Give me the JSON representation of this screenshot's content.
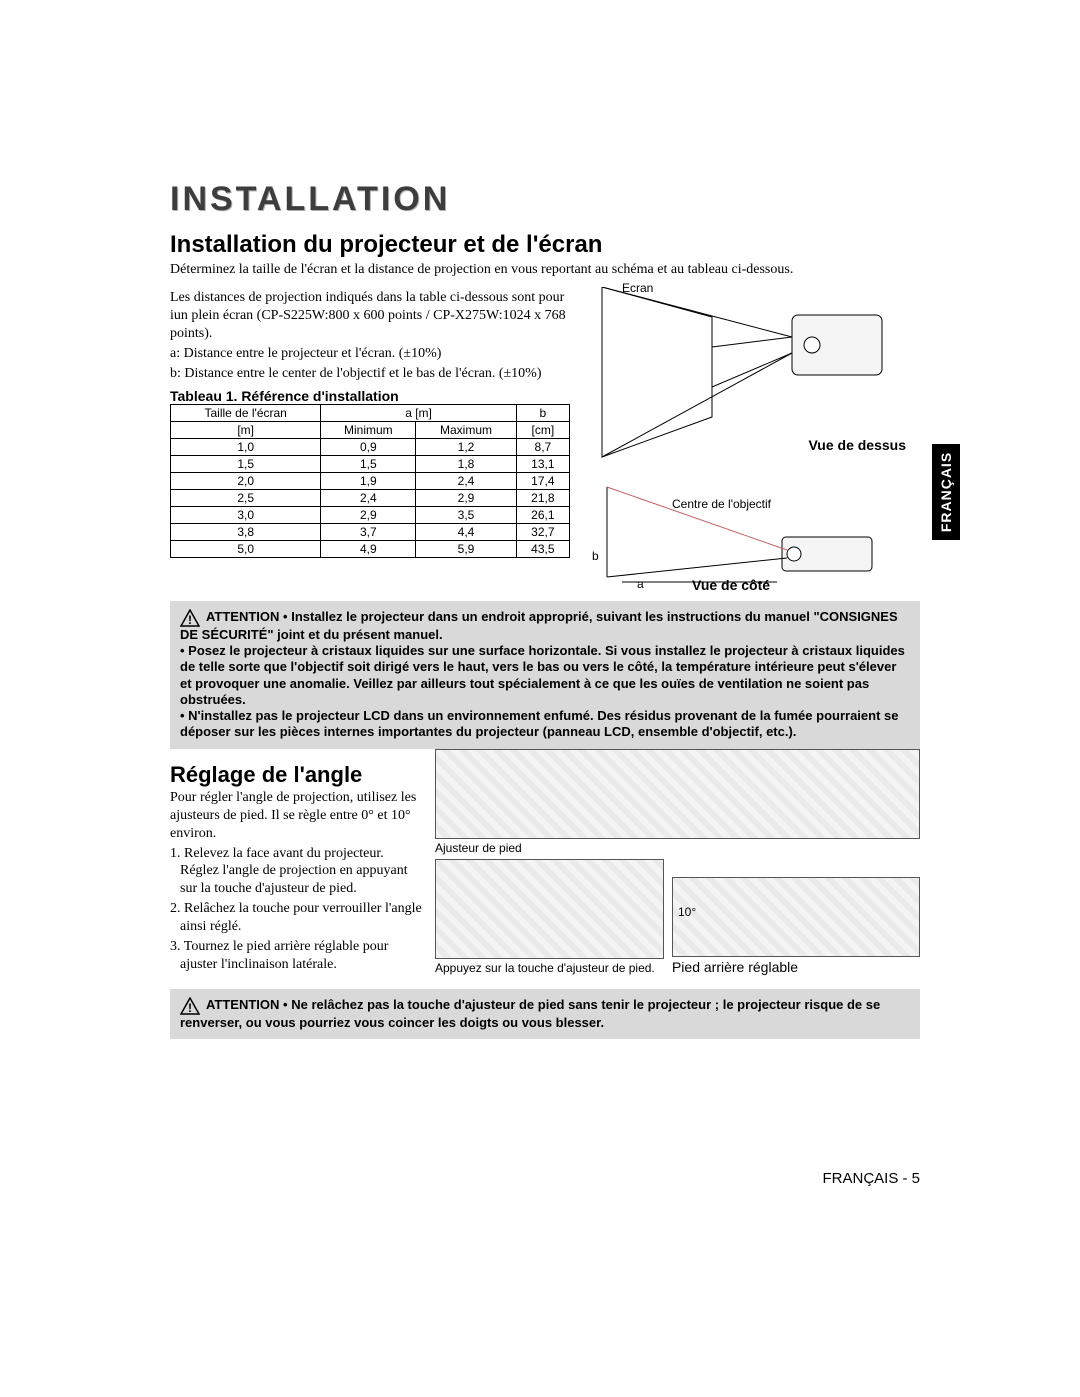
{
  "page": {
    "title": "INSTALLATION",
    "footer": "FRANÇAIS - 5",
    "lang_tab": "FRANÇAIS"
  },
  "section1": {
    "heading": "Installation du projecteur et de l'écran",
    "intro": "Déterminez la taille de l'écran et la distance de projection en vous reportant au schéma et au tableau ci-dessous.",
    "para_distances": "Les distances de projection indiqués dans la table ci-dessous sont pour iun plein écran (CP-S225W:800 x 600 points / CP-X275W:1024 x 768 points).",
    "line_a": "a: Distance entre le projecteur et l'écran. (±10%)",
    "line_b": "b: Distance entre le center de l'objectif et le bas de l'écran. (±10%)",
    "table_title": "Tableau 1. Référence d'installation",
    "table": {
      "header_col1": "Taille de l'écran",
      "header_col2": "a [m]",
      "header_col3": "b",
      "sub_col1": "[m]",
      "sub_col2_min": "Minimum",
      "sub_col2_max": "Maximum",
      "sub_col3": "[cm]",
      "rows": [
        [
          "1,0",
          "0,9",
          "1,2",
          "8,7"
        ],
        [
          "1,5",
          "1,5",
          "1,8",
          "13,1"
        ],
        [
          "2,0",
          "1,9",
          "2,4",
          "17,4"
        ],
        [
          "2,5",
          "2,4",
          "2,9",
          "21,8"
        ],
        [
          "3,0",
          "2,9",
          "3,5",
          "26,1"
        ],
        [
          "3,8",
          "3,7",
          "4,4",
          "32,7"
        ],
        [
          "5,0",
          "4,9",
          "5,9",
          "43,5"
        ]
      ]
    },
    "diagram": {
      "ecran": "Ecran",
      "top_view": "Vue de dessus",
      "centre": "Centre de l'objectif",
      "a": "a",
      "b": "b",
      "side_view": "Vue de côté"
    }
  },
  "attention1": {
    "lead": "ATTENTION",
    "text": "• Installez le projecteur dans un endroit approprié, suivant les instructions du manuel \"CONSIGNES DE SÉCURITÉ\" joint et du présent manuel.\n• Posez le projecteur à cristaux liquides sur une surface horizontale. Si vous installez le projecteur à cristaux liquides de telle sorte que l'objectif soit dirigé vers le haut, vers le bas ou vers le côté, la température intérieure peut s'élever et provoquer une anomalie. Veillez par ailleurs tout spécialement à ce que les ouïes de ventilation ne soient pas obstruées.\n• N'installez pas le projecteur LCD dans un environnement enfumé. Des résidus provenant de la fumée pourraient se déposer sur les pièces internes importantes du projecteur (panneau LCD, ensemble d'objectif, etc.)."
  },
  "section2": {
    "heading": "Réglage de l'angle",
    "intro": "Pour régler l'angle de projection, utilisez les ajusteurs de pied. Il se règle entre 0° et 10° environ.",
    "step1": "1. Relevez la face avant du projecteur. Réglez l'angle de projection en appuyant sur la touche d'ajusteur de pied.",
    "step2": "2. Relâchez la touche pour verrouiller l'angle ainsi réglé.",
    "step3": "3. Tournez le pied arrière réglable pour ajuster l'inclinaison latérale.",
    "labels": {
      "ajusteur": "Ajusteur de pied",
      "appuyez": "Appuyez sur la touche d'ajusteur de pied.",
      "pied_arriere": "Pied arrière réglable",
      "ten_deg": "10°"
    }
  },
  "attention2": {
    "lead": "ATTENTION",
    "text": "• Ne relâchez pas la touche d'ajusteur de pied sans tenir le projecteur ; le projecteur risque de se renverser, ou vous pourriez vous coincer les doigts ou vous blesser."
  },
  "colors": {
    "page_bg": "#ffffff",
    "text": "#000000",
    "title_shadow": "#b0b0b0",
    "box_bg": "#d9d9d9",
    "tab_bg": "#000000",
    "tab_fg": "#ffffff"
  }
}
